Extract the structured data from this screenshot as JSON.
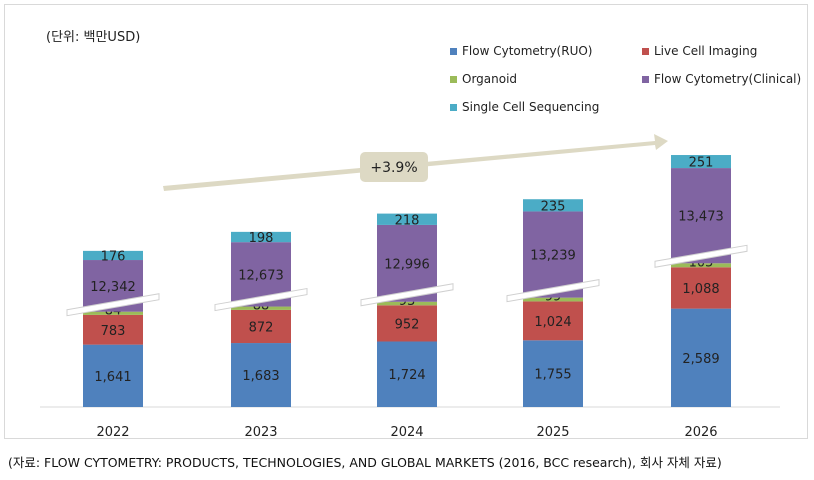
{
  "unit_label": "(단위: 백만USD)",
  "source_text": "(자료: FLOW CYTOMETRY: PRODUCTS, TECHNOLOGIES, AND GLOBAL MARKETS (2016, BCC research), 회사 자체 자료)",
  "growth_label": "+3.9%",
  "colors": {
    "Flow Cytometry(RUO)": "#4f81bd",
    "Live Cell Imaging": "#c0504d",
    "Organoid": "#9bbb59",
    "Flow Cytometry(Clinical)": "#8064a2",
    "Single Cell Sequencing": "#4bacc6",
    "arrow": "#ddd9c4",
    "growth_box": "#ddd9c4"
  },
  "chart_data": {
    "type": "bar",
    "stacked": true,
    "axis_break": true,
    "categories": [
      "2022",
      "2023",
      "2024",
      "2025",
      "2026"
    ],
    "series": [
      {
        "name": "Flow Cytometry(RUO)",
        "values": [
          1641,
          1683,
          1724,
          1755,
          2589
        ],
        "labels": [
          "1,641",
          "1,683",
          "1,724",
          "1,755",
          "2,589"
        ]
      },
      {
        "name": "Live Cell Imaging",
        "values": [
          783,
          872,
          952,
          1024,
          1088
        ],
        "labels": [
          "783",
          "872",
          "952",
          "1,024",
          "1,088"
        ]
      },
      {
        "name": "Organoid",
        "values": [
          84,
          88,
          93,
          99,
          105
        ],
        "labels": [
          "84",
          "88",
          "93",
          "99",
          "105"
        ]
      },
      {
        "name": "Flow Cytometry(Clinical)",
        "values": [
          12342,
          12673,
          12996,
          13239,
          13473
        ],
        "labels": [
          "12,342",
          "12,673",
          "12,996",
          "13,239",
          "13,473"
        ]
      },
      {
        "name": "Single Cell Sequencing",
        "values": [
          176,
          198,
          218,
          235,
          251
        ],
        "labels": [
          "176",
          "198",
          "218",
          "235",
          "251"
        ]
      }
    ],
    "legend_position": "top-right",
    "grid": false
  }
}
